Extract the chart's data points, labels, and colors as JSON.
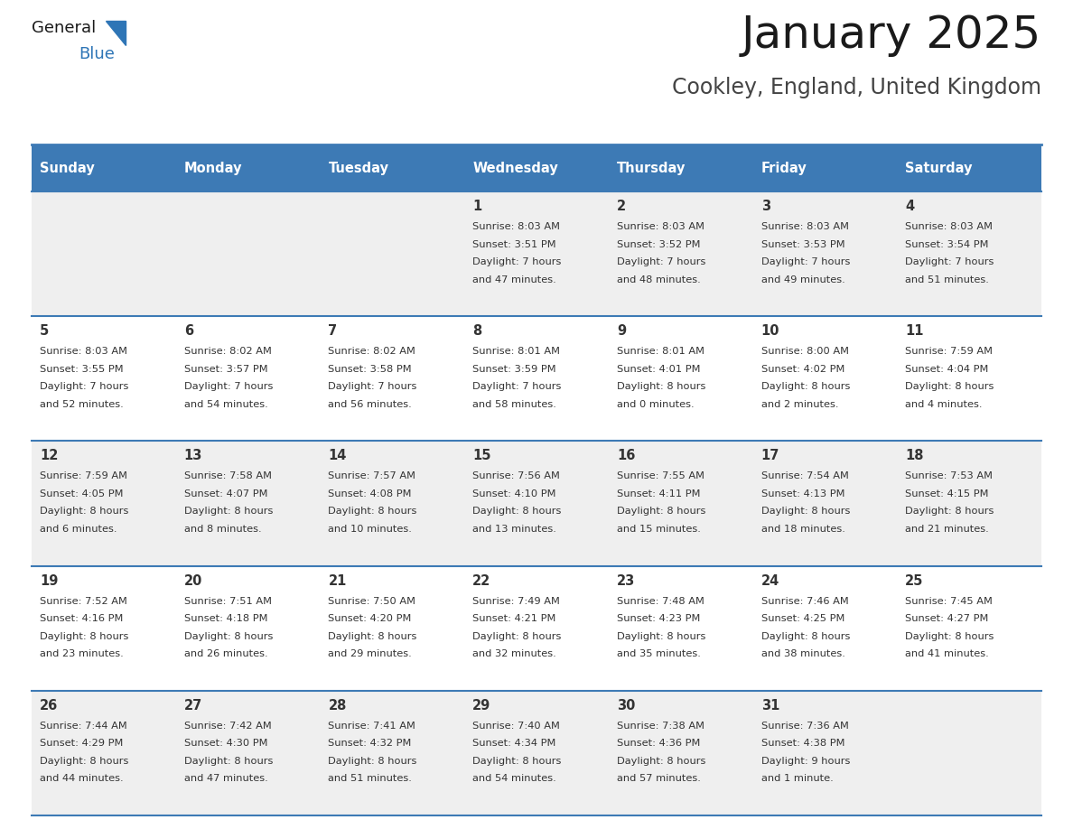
{
  "title": "January 2025",
  "subtitle": "Cookley, England, United Kingdom",
  "header_color": "#3D7AB5",
  "header_text_color": "#FFFFFF",
  "day_headers": [
    "Sunday",
    "Monday",
    "Tuesday",
    "Wednesday",
    "Thursday",
    "Friday",
    "Saturday"
  ],
  "cell_data": [
    [
      {
        "day": "",
        "sunrise": "",
        "sunset": "",
        "daylight_line1": "",
        "daylight_line2": ""
      },
      {
        "day": "",
        "sunrise": "",
        "sunset": "",
        "daylight_line1": "",
        "daylight_line2": ""
      },
      {
        "day": "",
        "sunrise": "",
        "sunset": "",
        "daylight_line1": "",
        "daylight_line2": ""
      },
      {
        "day": "1",
        "sunrise": "8:03 AM",
        "sunset": "3:51 PM",
        "daylight_line1": "Daylight: 7 hours",
        "daylight_line2": "and 47 minutes."
      },
      {
        "day": "2",
        "sunrise": "8:03 AM",
        "sunset": "3:52 PM",
        "daylight_line1": "Daylight: 7 hours",
        "daylight_line2": "and 48 minutes."
      },
      {
        "day": "3",
        "sunrise": "8:03 AM",
        "sunset": "3:53 PM",
        "daylight_line1": "Daylight: 7 hours",
        "daylight_line2": "and 49 minutes."
      },
      {
        "day": "4",
        "sunrise": "8:03 AM",
        "sunset": "3:54 PM",
        "daylight_line1": "Daylight: 7 hours",
        "daylight_line2": "and 51 minutes."
      }
    ],
    [
      {
        "day": "5",
        "sunrise": "8:03 AM",
        "sunset": "3:55 PM",
        "daylight_line1": "Daylight: 7 hours",
        "daylight_line2": "and 52 minutes."
      },
      {
        "day": "6",
        "sunrise": "8:02 AM",
        "sunset": "3:57 PM",
        "daylight_line1": "Daylight: 7 hours",
        "daylight_line2": "and 54 minutes."
      },
      {
        "day": "7",
        "sunrise": "8:02 AM",
        "sunset": "3:58 PM",
        "daylight_line1": "Daylight: 7 hours",
        "daylight_line2": "and 56 minutes."
      },
      {
        "day": "8",
        "sunrise": "8:01 AM",
        "sunset": "3:59 PM",
        "daylight_line1": "Daylight: 7 hours",
        "daylight_line2": "and 58 minutes."
      },
      {
        "day": "9",
        "sunrise": "8:01 AM",
        "sunset": "4:01 PM",
        "daylight_line1": "Daylight: 8 hours",
        "daylight_line2": "and 0 minutes."
      },
      {
        "day": "10",
        "sunrise": "8:00 AM",
        "sunset": "4:02 PM",
        "daylight_line1": "Daylight: 8 hours",
        "daylight_line2": "and 2 minutes."
      },
      {
        "day": "11",
        "sunrise": "7:59 AM",
        "sunset": "4:04 PM",
        "daylight_line1": "Daylight: 8 hours",
        "daylight_line2": "and 4 minutes."
      }
    ],
    [
      {
        "day": "12",
        "sunrise": "7:59 AM",
        "sunset": "4:05 PM",
        "daylight_line1": "Daylight: 8 hours",
        "daylight_line2": "and 6 minutes."
      },
      {
        "day": "13",
        "sunrise": "7:58 AM",
        "sunset": "4:07 PM",
        "daylight_line1": "Daylight: 8 hours",
        "daylight_line2": "and 8 minutes."
      },
      {
        "day": "14",
        "sunrise": "7:57 AM",
        "sunset": "4:08 PM",
        "daylight_line1": "Daylight: 8 hours",
        "daylight_line2": "and 10 minutes."
      },
      {
        "day": "15",
        "sunrise": "7:56 AM",
        "sunset": "4:10 PM",
        "daylight_line1": "Daylight: 8 hours",
        "daylight_line2": "and 13 minutes."
      },
      {
        "day": "16",
        "sunrise": "7:55 AM",
        "sunset": "4:11 PM",
        "daylight_line1": "Daylight: 8 hours",
        "daylight_line2": "and 15 minutes."
      },
      {
        "day": "17",
        "sunrise": "7:54 AM",
        "sunset": "4:13 PM",
        "daylight_line1": "Daylight: 8 hours",
        "daylight_line2": "and 18 minutes."
      },
      {
        "day": "18",
        "sunrise": "7:53 AM",
        "sunset": "4:15 PM",
        "daylight_line1": "Daylight: 8 hours",
        "daylight_line2": "and 21 minutes."
      }
    ],
    [
      {
        "day": "19",
        "sunrise": "7:52 AM",
        "sunset": "4:16 PM",
        "daylight_line1": "Daylight: 8 hours",
        "daylight_line2": "and 23 minutes."
      },
      {
        "day": "20",
        "sunrise": "7:51 AM",
        "sunset": "4:18 PM",
        "daylight_line1": "Daylight: 8 hours",
        "daylight_line2": "and 26 minutes."
      },
      {
        "day": "21",
        "sunrise": "7:50 AM",
        "sunset": "4:20 PM",
        "daylight_line1": "Daylight: 8 hours",
        "daylight_line2": "and 29 minutes."
      },
      {
        "day": "22",
        "sunrise": "7:49 AM",
        "sunset": "4:21 PM",
        "daylight_line1": "Daylight: 8 hours",
        "daylight_line2": "and 32 minutes."
      },
      {
        "day": "23",
        "sunrise": "7:48 AM",
        "sunset": "4:23 PM",
        "daylight_line1": "Daylight: 8 hours",
        "daylight_line2": "and 35 minutes."
      },
      {
        "day": "24",
        "sunrise": "7:46 AM",
        "sunset": "4:25 PM",
        "daylight_line1": "Daylight: 8 hours",
        "daylight_line2": "and 38 minutes."
      },
      {
        "day": "25",
        "sunrise": "7:45 AM",
        "sunset": "4:27 PM",
        "daylight_line1": "Daylight: 8 hours",
        "daylight_line2": "and 41 minutes."
      }
    ],
    [
      {
        "day": "26",
        "sunrise": "7:44 AM",
        "sunset": "4:29 PM",
        "daylight_line1": "Daylight: 8 hours",
        "daylight_line2": "and 44 minutes."
      },
      {
        "day": "27",
        "sunrise": "7:42 AM",
        "sunset": "4:30 PM",
        "daylight_line1": "Daylight: 8 hours",
        "daylight_line2": "and 47 minutes."
      },
      {
        "day": "28",
        "sunrise": "7:41 AM",
        "sunset": "4:32 PM",
        "daylight_line1": "Daylight: 8 hours",
        "daylight_line2": "and 51 minutes."
      },
      {
        "day": "29",
        "sunrise": "7:40 AM",
        "sunset": "4:34 PM",
        "daylight_line1": "Daylight: 8 hours",
        "daylight_line2": "and 54 minutes."
      },
      {
        "day": "30",
        "sunrise": "7:38 AM",
        "sunset": "4:36 PM",
        "daylight_line1": "Daylight: 8 hours",
        "daylight_line2": "and 57 minutes."
      },
      {
        "day": "31",
        "sunrise": "7:36 AM",
        "sunset": "4:38 PM",
        "daylight_line1": "Daylight: 9 hours",
        "daylight_line2": "and 1 minute."
      },
      {
        "day": "",
        "sunrise": "",
        "sunset": "",
        "daylight_line1": "",
        "daylight_line2": ""
      }
    ]
  ],
  "logo_text_general": "General",
  "logo_text_blue": "Blue",
  "logo_triangle_color": "#2E75B6",
  "separator_color": "#3D7AB5",
  "cell_text_color": "#333333",
  "row_colors": [
    "#EFEFEF",
    "#FFFFFF"
  ],
  "figsize": [
    11.88,
    9.18
  ],
  "dpi": 100
}
